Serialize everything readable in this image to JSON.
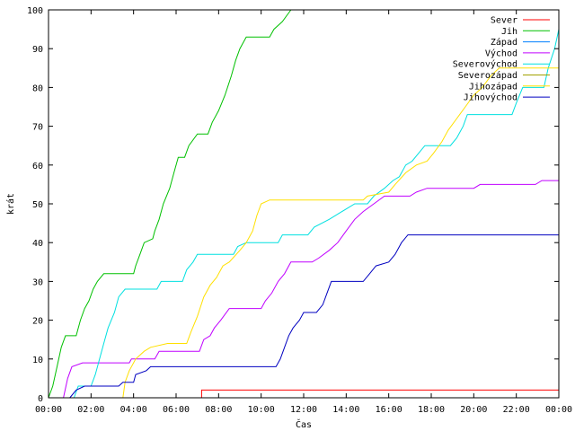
{
  "chart_data": {
    "type": "line",
    "xlabel": "Čas",
    "ylabel": "krát",
    "x_unit": "hours",
    "xlim": [
      0,
      24
    ],
    "ylim": [
      0,
      100
    ],
    "x_ticks": [
      {
        "value": 0,
        "label": "00:00"
      },
      {
        "value": 2,
        "label": "02:00"
      },
      {
        "value": 4,
        "label": "04:00"
      },
      {
        "value": 6,
        "label": "06:00"
      },
      {
        "value": 8,
        "label": "08:00"
      },
      {
        "value": 10,
        "label": "10:00"
      },
      {
        "value": 12,
        "label": "12:00"
      },
      {
        "value": 14,
        "label": "14:00"
      },
      {
        "value": 16,
        "label": "16:00"
      },
      {
        "value": 18,
        "label": "18:00"
      },
      {
        "value": 20,
        "label": "20:00"
      },
      {
        "value": 22,
        "label": "22:00"
      },
      {
        "value": 24,
        "label": "00:00"
      }
    ],
    "y_ticks": [
      0,
      10,
      20,
      30,
      40,
      50,
      60,
      70,
      80,
      90,
      100
    ],
    "grid": false,
    "legend_position": "top-right",
    "series": [
      {
        "name": "Sever",
        "color": "#ff0000",
        "points": [
          [
            0,
            0
          ],
          [
            7.2,
            0
          ],
          [
            7.2,
            2
          ],
          [
            24,
            2
          ]
        ]
      },
      {
        "name": "Jih",
        "color": "#00c000",
        "points": [
          [
            0,
            0
          ],
          [
            0.2,
            3
          ],
          [
            0.4,
            8
          ],
          [
            0.6,
            13
          ],
          [
            0.8,
            16
          ],
          [
            1.3,
            16
          ],
          [
            1.5,
            20
          ],
          [
            1.7,
            23
          ],
          [
            1.9,
            25
          ],
          [
            2.1,
            28
          ],
          [
            2.3,
            30
          ],
          [
            2.6,
            32
          ],
          [
            4.0,
            32
          ],
          [
            4.1,
            34
          ],
          [
            4.3,
            37
          ],
          [
            4.5,
            40
          ],
          [
            4.9,
            41
          ],
          [
            5.0,
            43
          ],
          [
            5.2,
            46
          ],
          [
            5.4,
            50
          ],
          [
            5.7,
            54
          ],
          [
            5.9,
            58
          ],
          [
            6.1,
            62
          ],
          [
            6.4,
            62
          ],
          [
            6.6,
            65
          ],
          [
            7.0,
            68
          ],
          [
            7.5,
            68
          ],
          [
            7.7,
            71
          ],
          [
            8.0,
            74
          ],
          [
            8.3,
            78
          ],
          [
            8.6,
            83
          ],
          [
            8.8,
            87
          ],
          [
            9.0,
            90
          ],
          [
            9.3,
            93
          ],
          [
            10.4,
            93
          ],
          [
            10.6,
            95
          ],
          [
            11.0,
            97
          ],
          [
            11.4,
            100
          ]
        ]
      },
      {
        "name": "Západ",
        "color": "#0080ff",
        "points": [
          [
            0,
            0
          ],
          [
            24,
            0
          ]
        ]
      },
      {
        "name": "Východ",
        "color": "#c000ff",
        "points": [
          [
            0.7,
            0
          ],
          [
            0.9,
            5
          ],
          [
            1.1,
            8
          ],
          [
            1.6,
            9
          ],
          [
            3.8,
            9
          ],
          [
            3.9,
            10
          ],
          [
            5.0,
            10
          ],
          [
            5.2,
            12
          ],
          [
            7.1,
            12
          ],
          [
            7.3,
            15
          ],
          [
            7.6,
            16
          ],
          [
            7.8,
            18
          ],
          [
            8.1,
            20
          ],
          [
            8.5,
            23
          ],
          [
            10.0,
            23
          ],
          [
            10.2,
            25
          ],
          [
            10.5,
            27
          ],
          [
            10.8,
            30
          ],
          [
            11.1,
            32
          ],
          [
            11.4,
            35
          ],
          [
            12.4,
            35
          ],
          [
            12.7,
            36
          ],
          [
            13.2,
            38
          ],
          [
            13.6,
            40
          ],
          [
            14.0,
            43
          ],
          [
            14.4,
            46
          ],
          [
            14.8,
            48
          ],
          [
            15.3,
            50
          ],
          [
            15.8,
            52
          ],
          [
            17.0,
            52
          ],
          [
            17.3,
            53
          ],
          [
            17.8,
            54
          ],
          [
            20.0,
            54
          ],
          [
            20.3,
            55
          ],
          [
            22.9,
            55
          ],
          [
            23.2,
            56
          ],
          [
            24.0,
            56
          ]
        ]
      },
      {
        "name": "Severovýchod",
        "color": "#00e0e0",
        "points": [
          [
            1.2,
            0
          ],
          [
            1.4,
            3
          ],
          [
            2.0,
            3
          ],
          [
            2.2,
            6
          ],
          [
            2.4,
            10
          ],
          [
            2.6,
            14
          ],
          [
            2.8,
            18
          ],
          [
            3.1,
            22
          ],
          [
            3.3,
            26
          ],
          [
            3.6,
            28
          ],
          [
            5.1,
            28
          ],
          [
            5.3,
            30
          ],
          [
            6.3,
            30
          ],
          [
            6.5,
            33
          ],
          [
            6.8,
            35
          ],
          [
            7.0,
            37
          ],
          [
            8.7,
            37
          ],
          [
            8.9,
            39
          ],
          [
            9.3,
            40
          ],
          [
            10.8,
            40
          ],
          [
            11.0,
            42
          ],
          [
            12.2,
            42
          ],
          [
            12.5,
            44
          ],
          [
            13.2,
            46
          ],
          [
            13.8,
            48
          ],
          [
            14.4,
            50
          ],
          [
            15.0,
            50
          ],
          [
            15.3,
            52
          ],
          [
            15.8,
            54
          ],
          [
            16.2,
            56
          ],
          [
            16.5,
            57
          ],
          [
            16.8,
            60
          ],
          [
            17.1,
            61
          ],
          [
            17.4,
            63
          ],
          [
            17.7,
            65
          ],
          [
            18.9,
            65
          ],
          [
            19.2,
            67
          ],
          [
            19.5,
            70
          ],
          [
            19.7,
            73
          ],
          [
            21.8,
            73
          ],
          [
            22.0,
            76
          ],
          [
            22.3,
            80
          ],
          [
            23.3,
            80
          ],
          [
            23.5,
            85
          ],
          [
            23.8,
            90
          ],
          [
            24.0,
            95
          ]
        ]
      },
      {
        "name": "Severozápad",
        "color": "#a0a000",
        "points": [
          [
            0,
            0
          ],
          [
            24,
            0
          ]
        ]
      },
      {
        "name": "Jihozápad",
        "color": "#ffe000",
        "points": [
          [
            3.5,
            0
          ],
          [
            3.6,
            4
          ],
          [
            3.8,
            7
          ],
          [
            4.1,
            10
          ],
          [
            4.5,
            12
          ],
          [
            4.8,
            13
          ],
          [
            5.6,
            14
          ],
          [
            6.5,
            14
          ],
          [
            6.7,
            17
          ],
          [
            7.0,
            21
          ],
          [
            7.3,
            26
          ],
          [
            7.6,
            29
          ],
          [
            7.9,
            31
          ],
          [
            8.2,
            34
          ],
          [
            8.5,
            35
          ],
          [
            9.0,
            38
          ],
          [
            9.3,
            40
          ],
          [
            9.6,
            43
          ],
          [
            9.8,
            47
          ],
          [
            10.0,
            50
          ],
          [
            10.4,
            51
          ],
          [
            14.8,
            51
          ],
          [
            15.0,
            52
          ],
          [
            16.0,
            53
          ],
          [
            16.3,
            55
          ],
          [
            16.8,
            58
          ],
          [
            17.3,
            60
          ],
          [
            17.8,
            61
          ],
          [
            18.1,
            63
          ],
          [
            18.5,
            66
          ],
          [
            18.8,
            69
          ],
          [
            19.2,
            72
          ],
          [
            19.6,
            75
          ],
          [
            20.0,
            78
          ],
          [
            20.4,
            80
          ],
          [
            20.8,
            83
          ],
          [
            21.2,
            85
          ],
          [
            24.0,
            85
          ]
        ]
      },
      {
        "name": "Jihovýchod",
        "color": "#0000c0",
        "points": [
          [
            1.0,
            0
          ],
          [
            1.3,
            2
          ],
          [
            1.7,
            3
          ],
          [
            3.3,
            3
          ],
          [
            3.5,
            4
          ],
          [
            4.0,
            4
          ],
          [
            4.1,
            6
          ],
          [
            4.6,
            7
          ],
          [
            4.8,
            8
          ],
          [
            10.7,
            8
          ],
          [
            10.9,
            10
          ],
          [
            11.1,
            13
          ],
          [
            11.3,
            16
          ],
          [
            11.5,
            18
          ],
          [
            11.8,
            20
          ],
          [
            12.0,
            22
          ],
          [
            12.6,
            22
          ],
          [
            12.9,
            24
          ],
          [
            13.1,
            27
          ],
          [
            13.3,
            30
          ],
          [
            14.8,
            30
          ],
          [
            15.1,
            32
          ],
          [
            15.4,
            34
          ],
          [
            16.0,
            35
          ],
          [
            16.3,
            37
          ],
          [
            16.6,
            40
          ],
          [
            16.9,
            42
          ],
          [
            24.0,
            42
          ]
        ]
      }
    ]
  }
}
